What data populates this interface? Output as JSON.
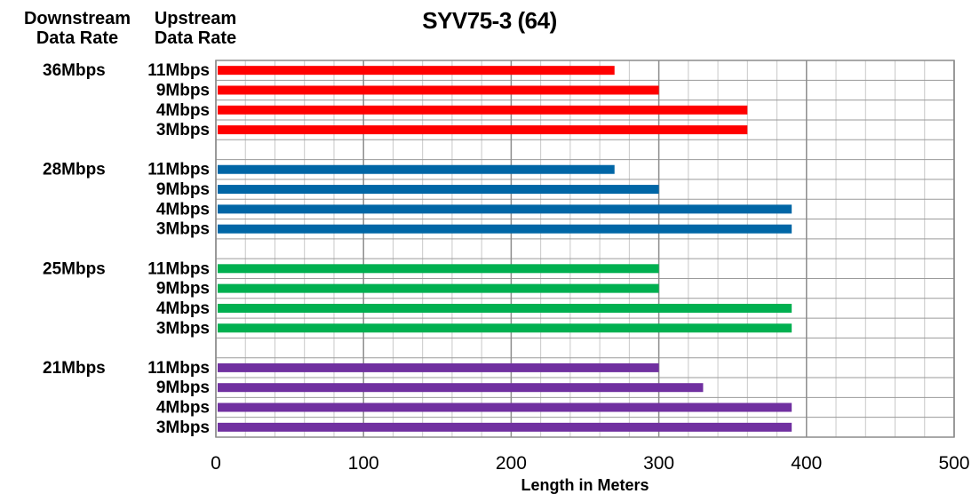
{
  "chart_data": {
    "type": "bar",
    "orientation": "horizontal",
    "title": "SYV75-3 (64)",
    "xlabel": "Length in Meters",
    "column_headers": {
      "downstream": [
        "Downstream",
        "Data Rate"
      ],
      "upstream": [
        "Upstream",
        "Data Rate"
      ]
    },
    "xlim": [
      0,
      500
    ],
    "x_ticks": [
      0,
      100,
      200,
      300,
      400,
      500
    ],
    "minor_step": 20,
    "grid": true,
    "groups": [
      {
        "downstream": "36Mbps",
        "color": "#FF0000",
        "bars": [
          {
            "upstream": "11Mbps",
            "value": 270
          },
          {
            "upstream": "9Mbps",
            "value": 300
          },
          {
            "upstream": "4Mbps",
            "value": 360
          },
          {
            "upstream": "3Mbps",
            "value": 360
          }
        ]
      },
      {
        "downstream": "28Mbps",
        "color": "#0066A6",
        "bars": [
          {
            "upstream": "11Mbps",
            "value": 270
          },
          {
            "upstream": "9Mbps",
            "value": 300
          },
          {
            "upstream": "4Mbps",
            "value": 390
          },
          {
            "upstream": "3Mbps",
            "value": 390
          }
        ]
      },
      {
        "downstream": "25Mbps",
        "color": "#00B050",
        "bars": [
          {
            "upstream": "11Mbps",
            "value": 300
          },
          {
            "upstream": "9Mbps",
            "value": 300
          },
          {
            "upstream": "4Mbps",
            "value": 390
          },
          {
            "upstream": "3Mbps",
            "value": 390
          }
        ]
      },
      {
        "downstream": "21Mbps",
        "color": "#7030A0",
        "bars": [
          {
            "upstream": "11Mbps",
            "value": 300
          },
          {
            "upstream": "9Mbps",
            "value": 330
          },
          {
            "upstream": "4Mbps",
            "value": 390
          },
          {
            "upstream": "3Mbps",
            "value": 390
          }
        ]
      }
    ]
  }
}
